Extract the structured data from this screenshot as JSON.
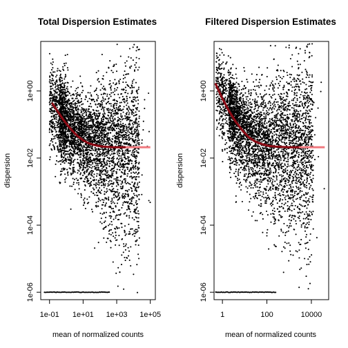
{
  "colors": {
    "points": "#000000",
    "trend": "#8b0a14",
    "trend_flat": "#f07a80",
    "frame": "#000000",
    "background": "#ffffff"
  },
  "chart_data": [
    {
      "type": "scatter",
      "title": "Total Dispersion Estimates",
      "xlabel": "mean of normalized counts",
      "ylabel": "dispersion",
      "x_scale": "log10",
      "y_scale": "log10",
      "xlim": [
        0.03,
        200000
      ],
      "ylim": [
        6e-07,
        30
      ],
      "x_ticks": [
        0.1,
        10,
        1000,
        100000
      ],
      "x_tick_labels": [
        "1e-01",
        "1e+01",
        "1e+03",
        "1e+05"
      ],
      "y_ticks": [
        1e-06,
        0.0001,
        0.01,
        1
      ],
      "y_tick_labels": [
        "1e-06",
        "1e-04",
        "1e-02",
        "1e+00"
      ],
      "grid": false,
      "legend": "none",
      "fitted_trend": {
        "x": [
          0.15,
          0.3,
          0.6,
          1.2,
          2.5,
          5,
          10,
          20,
          40,
          80,
          150,
          300,
          600,
          1200,
          2500,
          10000,
          100000
        ],
        "y": [
          0.42,
          0.25,
          0.15,
          0.095,
          0.062,
          0.044,
          0.034,
          0.028,
          0.025,
          0.023,
          0.022,
          0.0215,
          0.021,
          0.021,
          0.021,
          0.021,
          0.021
        ]
      },
      "flat_segment_from_x": 3000,
      "zero_dispersion_value": 1e-06,
      "zero_dispersion_x_range": [
        0.05,
        400
      ],
      "cloud": {
        "x_range": [
          0.1,
          100000
        ],
        "n_points": 4200
      }
    },
    {
      "type": "scatter",
      "title": "Filtered Dispersion Estimates",
      "xlabel": "mean of normalized counts",
      "ylabel": "dispersion",
      "x_scale": "log10",
      "y_scale": "log10",
      "xlim": [
        0.42,
        60000
      ],
      "ylim": [
        6e-07,
        30
      ],
      "x_ticks": [
        1,
        100,
        10000
      ],
      "x_tick_labels": [
        "1",
        "100",
        "10000"
      ],
      "y_ticks": [
        1e-06,
        0.0001,
        0.01,
        1
      ],
      "y_tick_labels": [
        "1e-06",
        "1e-04",
        "1e-02",
        "1e+00"
      ],
      "grid": false,
      "legend": "none",
      "fitted_trend": {
        "x": [
          0.5,
          1,
          2,
          4,
          8,
          15,
          30,
          60,
          120,
          250,
          500,
          1000,
          2500,
          10000,
          40000
        ],
        "y": [
          1.6,
          0.6,
          0.25,
          0.12,
          0.066,
          0.042,
          0.031,
          0.026,
          0.023,
          0.022,
          0.0215,
          0.021,
          0.021,
          0.021,
          0.021
        ]
      },
      "flat_segment_from_x": 2500,
      "zero_dispersion_value": 1e-06,
      "zero_dispersion_x_range": [
        0.5,
        250
      ],
      "cloud": {
        "x_range": [
          0.5,
          40000
        ],
        "n_points": 4200
      }
    }
  ]
}
